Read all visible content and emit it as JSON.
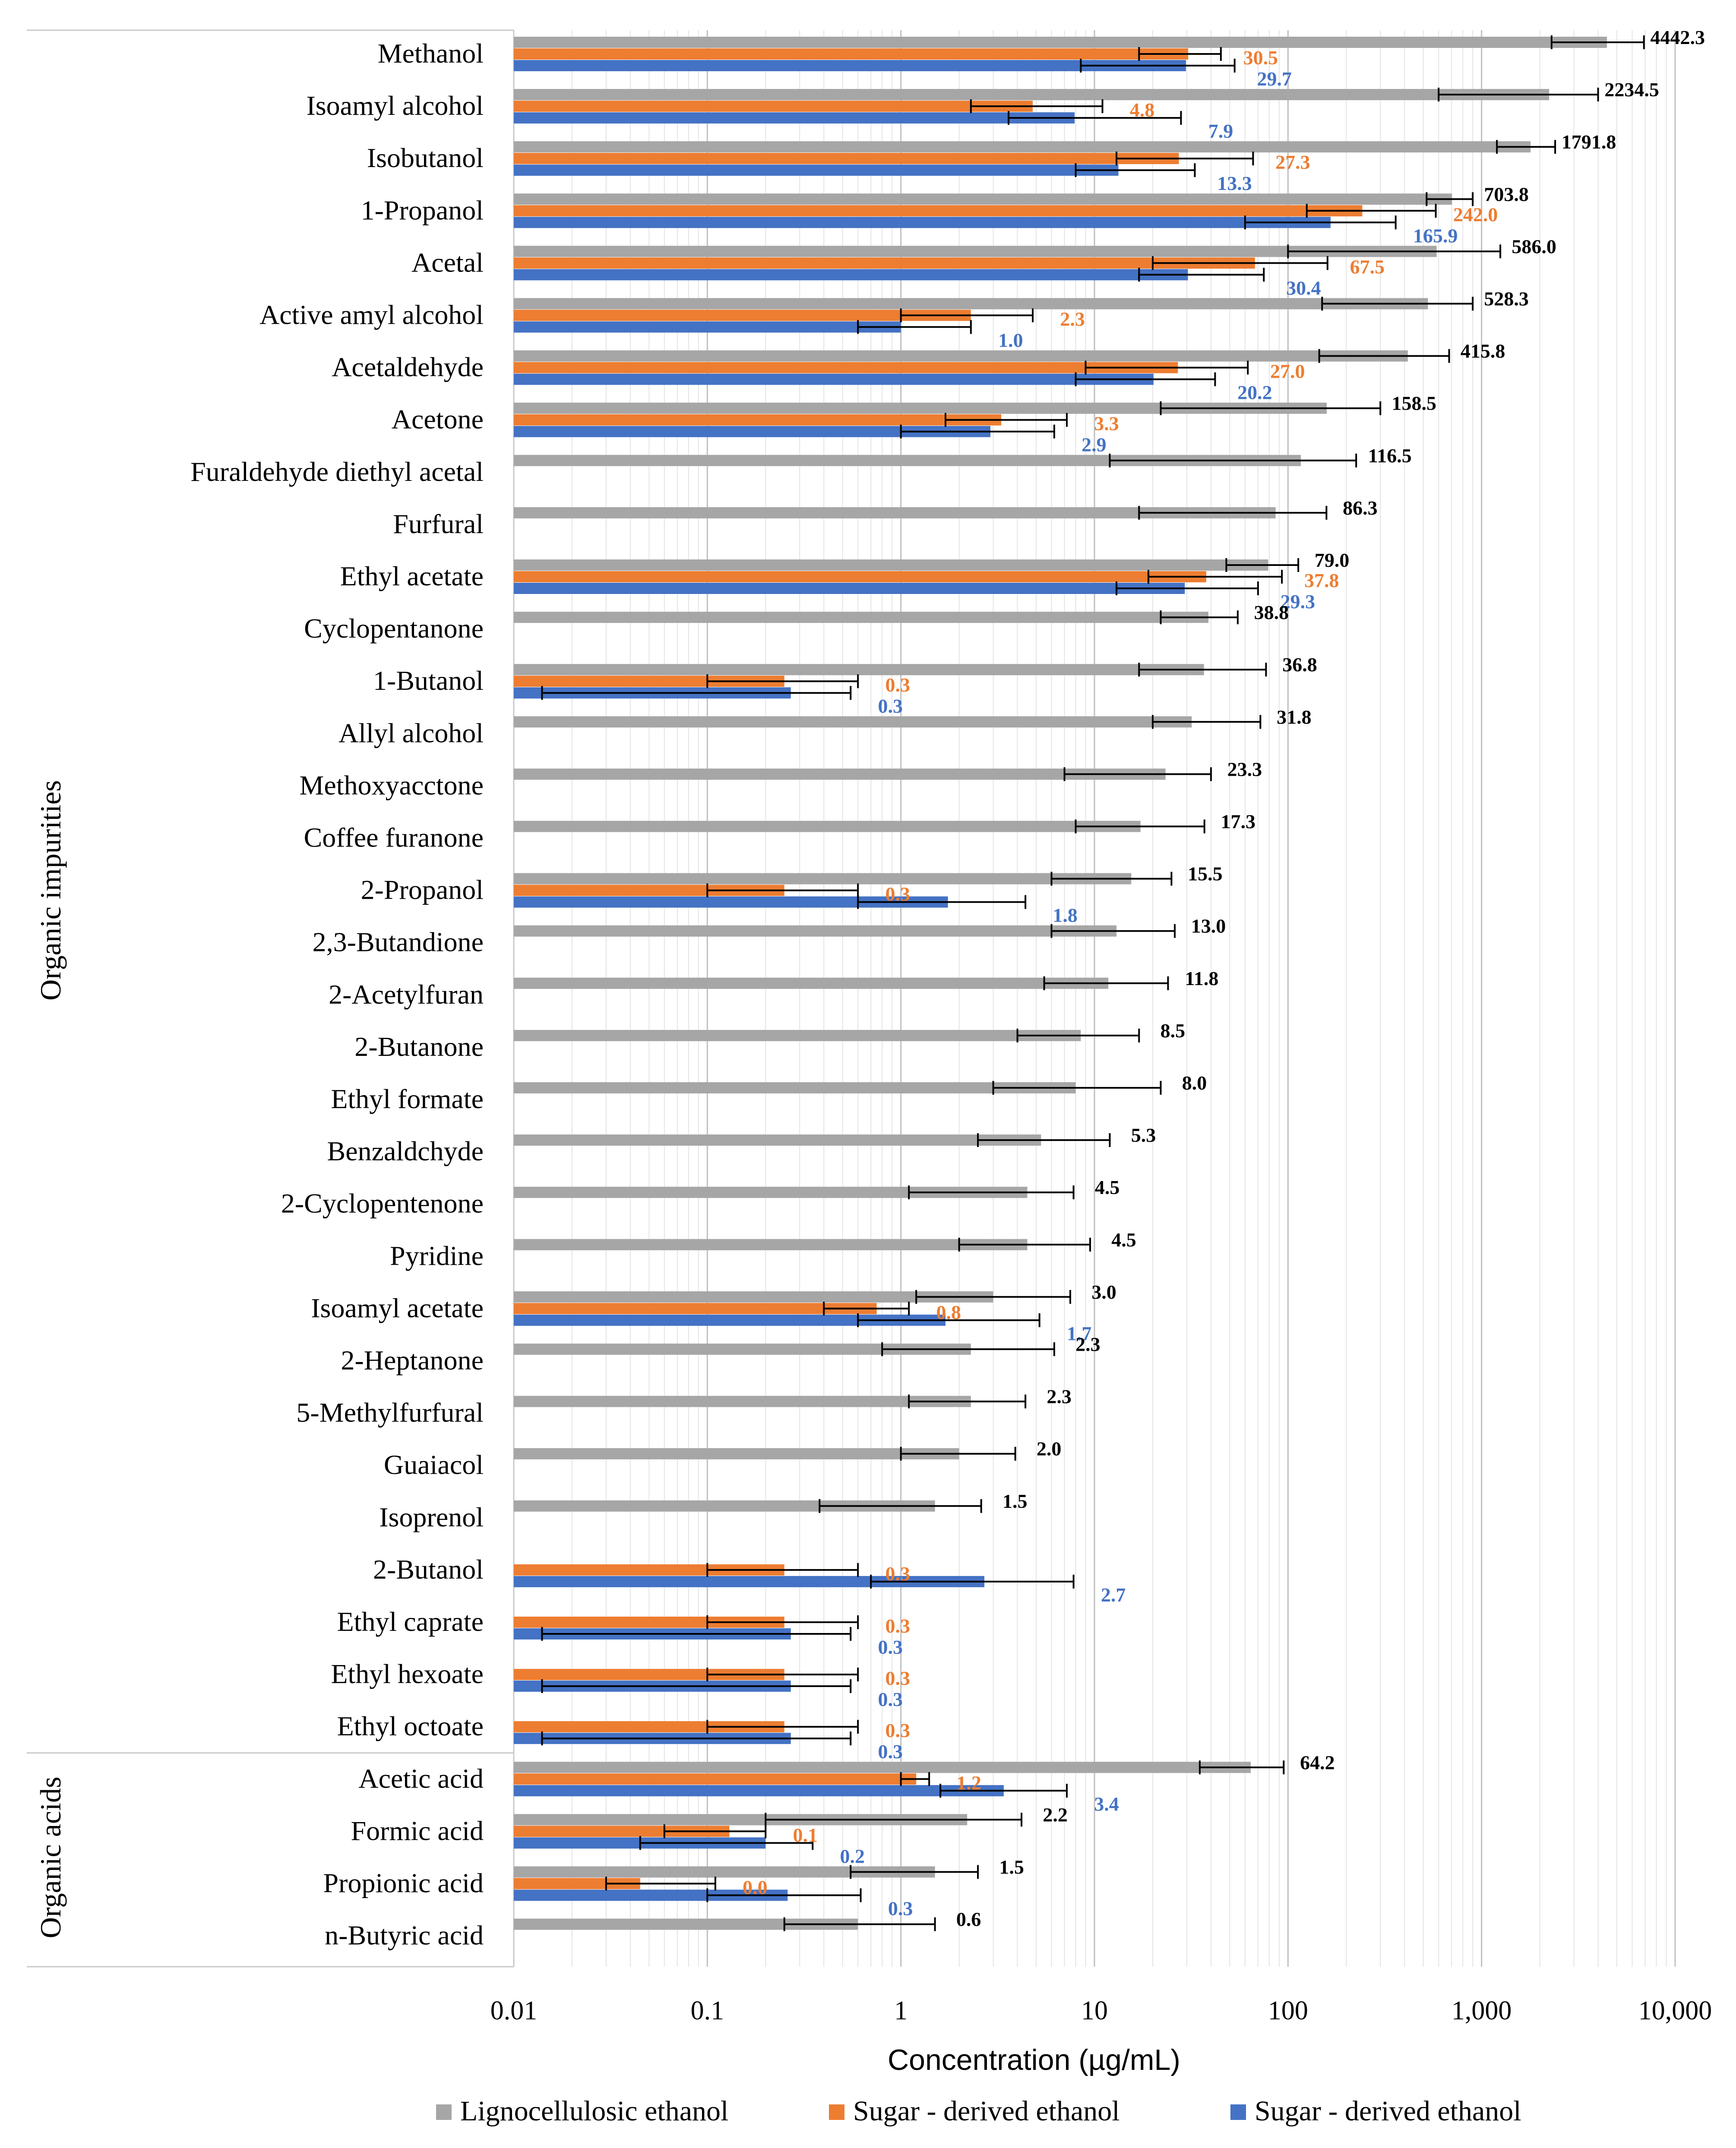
{
  "chart_data": {
    "type": "bar",
    "orientation": "horizontal",
    "x_scale": "log",
    "xlim": [
      0.01,
      10000
    ],
    "xlabel": "Concentration (µg/mL)",
    "x_ticks": [
      {
        "value": 0.01,
        "label": "0.01"
      },
      {
        "value": 0.1,
        "label": "0.1"
      },
      {
        "value": 1,
        "label": "1"
      },
      {
        "value": 10,
        "label": "10"
      },
      {
        "value": 100,
        "label": "100"
      },
      {
        "value": 1000,
        "label": "1,000"
      },
      {
        "value": 10000,
        "label": "10,000"
      }
    ],
    "groups": [
      {
        "label": "Organic impurities",
        "start": 0,
        "end": 32
      },
      {
        "label": "Organic acids",
        "start": 33,
        "end": 36
      }
    ],
    "legend_position": "bottom",
    "series": [
      {
        "name": "Lignocellulosic ethanol",
        "color": "#a6a6a6",
        "label_color": "#000000"
      },
      {
        "name": "Sugar - derived ethanol",
        "color": "#ed7d31",
        "label_color": "#ed7d31"
      },
      {
        "name": "Sugar - derived ethanol",
        "color": "#4472c4",
        "label_color": "#4472c4"
      }
    ],
    "categories": [
      {
        "name": "Methanol",
        "values": [
          [
            4442.3,
            2300,
            6900,
            "4442.3"
          ],
          [
            30.5,
            17,
            45,
            "30.5"
          ],
          [
            29.7,
            8.5,
            53,
            "29.7"
          ]
        ]
      },
      {
        "name": "Isoamyl alcohol",
        "values": [
          [
            2234.5,
            600,
            4000,
            "2234.5"
          ],
          [
            4.8,
            2.3,
            11,
            "4.8"
          ],
          [
            7.9,
            3.6,
            28,
            "7.9"
          ]
        ]
      },
      {
        "name": "Isobutanol",
        "values": [
          [
            1791.8,
            1200,
            2400,
            "1791.8"
          ],
          [
            27.3,
            13,
            66,
            "27.3"
          ],
          [
            13.3,
            8,
            33,
            "13.3"
          ]
        ]
      },
      {
        "name": "1-Propanol",
        "values": [
          [
            703.8,
            520,
            900,
            "703.8"
          ],
          [
            242.0,
            125,
            580,
            "242.0"
          ],
          [
            165.9,
            60,
            360,
            "165.9"
          ]
        ]
      },
      {
        "name": "Acetal",
        "values": [
          [
            586.0,
            100,
            1250,
            "586.0"
          ],
          [
            67.5,
            20,
            160,
            "67.5"
          ],
          [
            30.4,
            17,
            75,
            "30.4"
          ]
        ]
      },
      {
        "name": "Active amyl alcohol",
        "values": [
          [
            528.3,
            150,
            900,
            "528.3"
          ],
          [
            2.3,
            1.0,
            4.8,
            "2.3"
          ],
          [
            1.0,
            0.6,
            2.3,
            "1.0"
          ]
        ]
      },
      {
        "name": "Acetaldehyde",
        "values": [
          [
            415.8,
            145,
            680,
            "415.8"
          ],
          [
            27.0,
            9,
            62,
            "27.0"
          ],
          [
            20.2,
            8,
            42,
            "20.2"
          ]
        ]
      },
      {
        "name": "Acetone",
        "values": [
          [
            158.5,
            22,
            300,
            "158.5"
          ],
          [
            3.3,
            1.7,
            7.2,
            "3.3"
          ],
          [
            2.9,
            1.0,
            6.2,
            "2.9"
          ]
        ]
      },
      {
        "name": "Furaldehyde diethyl acetal",
        "values": [
          [
            116.5,
            12,
            225,
            "116.5"
          ],
          null,
          null
        ]
      },
      {
        "name": "Furfural",
        "values": [
          [
            86.3,
            17,
            158,
            "86.3"
          ],
          null,
          null
        ]
      },
      {
        "name": "Ethyl acetate",
        "values": [
          [
            79.0,
            48,
            113,
            "79.0"
          ],
          [
            37.8,
            19,
            93,
            "37.8"
          ],
          [
            29.3,
            13,
            70,
            "29.3"
          ]
        ]
      },
      {
        "name": "Cyclopentanone",
        "values": [
          [
            38.8,
            22,
            55,
            "38.8"
          ],
          null,
          null
        ]
      },
      {
        "name": "1-Butanol",
        "values": [
          [
            36.8,
            17,
            77,
            "36.8"
          ],
          [
            0.25,
            0.1,
            0.6,
            "0.3"
          ],
          [
            0.27,
            0.014,
            0.55,
            "0.3"
          ]
        ]
      },
      {
        "name": "Allyl alcohol",
        "values": [
          [
            31.8,
            20,
            72,
            "31.8"
          ],
          null,
          null
        ]
      },
      {
        "name": "Methoxyacctone",
        "values": [
          [
            23.3,
            7,
            40,
            "23.3"
          ],
          null,
          null
        ]
      },
      {
        "name": "Coffee furanone",
        "values": [
          [
            17.3,
            8,
            37,
            "17.3"
          ],
          null,
          null
        ]
      },
      {
        "name": "2-Propanol",
        "values": [
          [
            15.5,
            6,
            25,
            "15.5"
          ],
          [
            0.25,
            0.1,
            0.6,
            "0.3"
          ],
          [
            1.75,
            0.6,
            4.4,
            "1.8"
          ]
        ]
      },
      {
        "name": "2,3-Butandione",
        "values": [
          [
            13.0,
            6,
            26,
            "13.0"
          ],
          null,
          null
        ]
      },
      {
        "name": "2-Acetylfuran",
        "values": [
          [
            11.8,
            5.5,
            24,
            "11.8"
          ],
          null,
          null
        ]
      },
      {
        "name": "2-Butanone",
        "values": [
          [
            8.5,
            4,
            17,
            "8.5"
          ],
          null,
          null
        ]
      },
      {
        "name": "Ethyl formate",
        "values": [
          [
            8.0,
            3,
            22,
            "8.0"
          ],
          null,
          null
        ]
      },
      {
        "name": "Benzaldchyde",
        "values": [
          [
            5.3,
            2.5,
            12,
            "5.3"
          ],
          null,
          null
        ]
      },
      {
        "name": "2-Cyclopentenone",
        "values": [
          [
            4.5,
            1.1,
            7.8,
            "4.5"
          ],
          null,
          null
        ]
      },
      {
        "name": "Pyridine",
        "values": [
          [
            4.5,
            2,
            9.5,
            "4.5"
          ],
          null,
          null
        ]
      },
      {
        "name": "Isoamyl acetate",
        "values": [
          [
            3.0,
            1.2,
            7.5,
            "3.0"
          ],
          [
            0.75,
            0.4,
            1.1,
            "0.8"
          ],
          [
            1.7,
            0.6,
            5.2,
            "1.7"
          ]
        ]
      },
      {
        "name": "2-Heptanone",
        "values": [
          [
            2.3,
            0.8,
            6.2,
            "2.3"
          ],
          null,
          null
        ]
      },
      {
        "name": "5-Methylfurfural",
        "values": [
          [
            2.3,
            1.1,
            4.4,
            "2.3"
          ],
          null,
          null
        ]
      },
      {
        "name": "Guaiacol",
        "values": [
          [
            2.0,
            1.0,
            3.9,
            "2.0"
          ],
          null,
          null
        ]
      },
      {
        "name": "Isoprenol",
        "values": [
          [
            1.5,
            0.38,
            2.6,
            "1.5"
          ],
          null,
          null
        ]
      },
      {
        "name": "2-Butanol",
        "values": [
          null,
          [
            0.25,
            0.1,
            0.6,
            "0.3"
          ],
          [
            2.7,
            0.7,
            7.8,
            "2.7"
          ]
        ]
      },
      {
        "name": "Ethyl caprate",
        "values": [
          null,
          [
            0.25,
            0.1,
            0.6,
            "0.3"
          ],
          [
            0.27,
            0.014,
            0.55,
            "0.3"
          ]
        ]
      },
      {
        "name": "Ethyl hexoate",
        "values": [
          null,
          [
            0.25,
            0.1,
            0.6,
            "0.3"
          ],
          [
            0.27,
            0.014,
            0.55,
            "0.3"
          ]
        ]
      },
      {
        "name": "Ethyl octoate",
        "values": [
          null,
          [
            0.25,
            0.1,
            0.6,
            "0.3"
          ],
          [
            0.27,
            0.014,
            0.55,
            "0.3"
          ]
        ]
      },
      {
        "name": "Acetic acid",
        "values": [
          [
            64.2,
            35,
            95,
            "64.2"
          ],
          [
            1.2,
            1.0,
            1.4,
            "1.2"
          ],
          [
            3.4,
            1.6,
            7.2,
            "3.4"
          ]
        ]
      },
      {
        "name": "Formic acid",
        "values": [
          [
            2.2,
            0.2,
            4.2,
            "2.2"
          ],
          [
            0.13,
            0.06,
            0.2,
            "0.1"
          ],
          [
            0.2,
            0.045,
            0.35,
            "0.2"
          ]
        ]
      },
      {
        "name": "Propionic acid",
        "values": [
          [
            1.5,
            0.55,
            2.5,
            "1.5"
          ],
          [
            0.045,
            0.03,
            0.11,
            "0.0"
          ],
          [
            0.26,
            0.1,
            0.62,
            "0.3"
          ]
        ]
      },
      {
        "name": "n-Butyric acid",
        "values": [
          [
            0.6,
            0.25,
            1.5,
            "0.6"
          ],
          null,
          null
        ]
      }
    ]
  }
}
